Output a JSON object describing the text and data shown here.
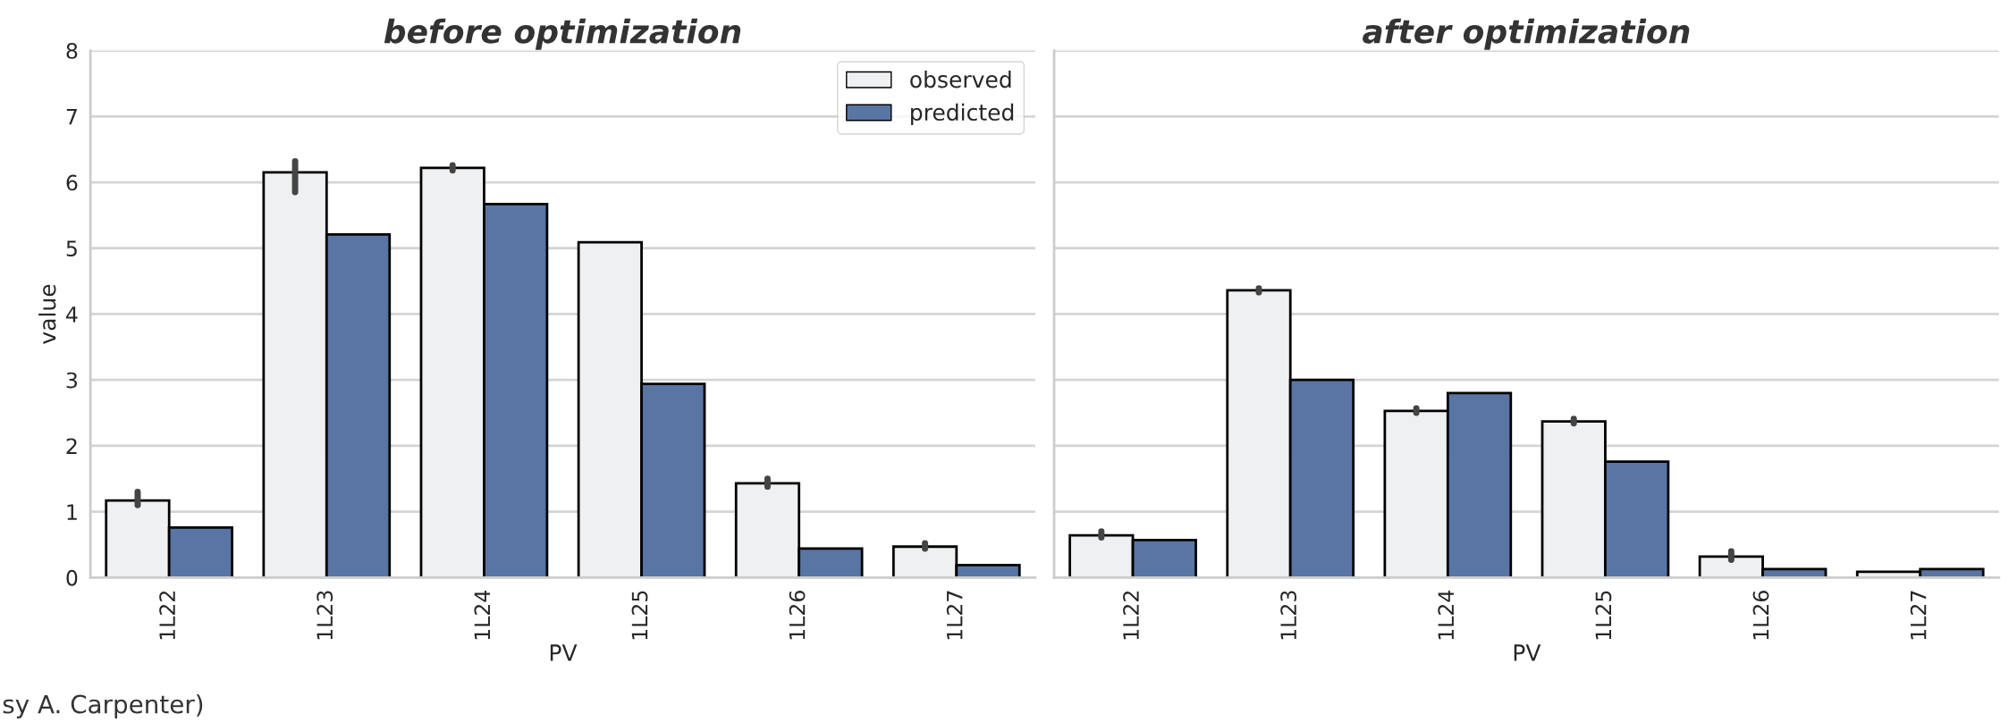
{
  "chart_data": [
    {
      "type": "bar",
      "title": "before optimization",
      "xlabel": "PV",
      "ylabel": "value",
      "categories": [
        "1L22",
        "1L23",
        "1L24",
        "1L25",
        "1L26",
        "1L27"
      ],
      "ylim": [
        0,
        8
      ],
      "yticks": [
        0,
        1,
        2,
        3,
        4,
        5,
        6,
        7,
        8
      ],
      "grid": "y",
      "legend": "top right",
      "annotations": [
        "sy A. Carpenter)"
      ],
      "series": [
        {
          "name": "observed",
          "color": "#eff0f2",
          "values": [
            1.17,
            6.15,
            6.22,
            5.09,
            1.43,
            0.47
          ],
          "errors": [
            [
              1.1,
              1.3
            ],
            [
              5.85,
              6.32
            ],
            [
              6.18,
              6.26
            ],
            null,
            [
              1.38,
              1.5
            ],
            [
              0.44,
              0.52
            ]
          ]
        },
        {
          "name": "predicted",
          "color": "#5975a4",
          "values": [
            0.76,
            5.21,
            5.67,
            2.94,
            0.44,
            0.19
          ]
        }
      ]
    },
    {
      "type": "bar",
      "title": "after optimization",
      "xlabel": "PV",
      "categories": [
        "1L22",
        "1L23",
        "1L24",
        "1L25",
        "1L26",
        "1L27"
      ],
      "ylim": [
        0,
        8
      ],
      "yticks": [
        0,
        1,
        2,
        3,
        4,
        5,
        6,
        7,
        8
      ],
      "grid": "y",
      "tick_labels": "x",
      "series": [
        {
          "color": "#eff0f2",
          "values": [
            0.64,
            4.36,
            2.53,
            2.37,
            0.32,
            0.09
          ],
          "errors": [
            [
              0.61,
              0.7
            ],
            [
              4.33,
              4.39
            ],
            [
              2.5,
              2.57
            ],
            [
              2.34,
              2.41
            ],
            [
              0.27,
              0.4
            ],
            null
          ]
        },
        {
          "color": "#5975a4",
          "values": [
            0.57,
            3.0,
            2.8,
            1.76,
            0.13,
            0.13
          ]
        }
      ]
    }
  ]
}
